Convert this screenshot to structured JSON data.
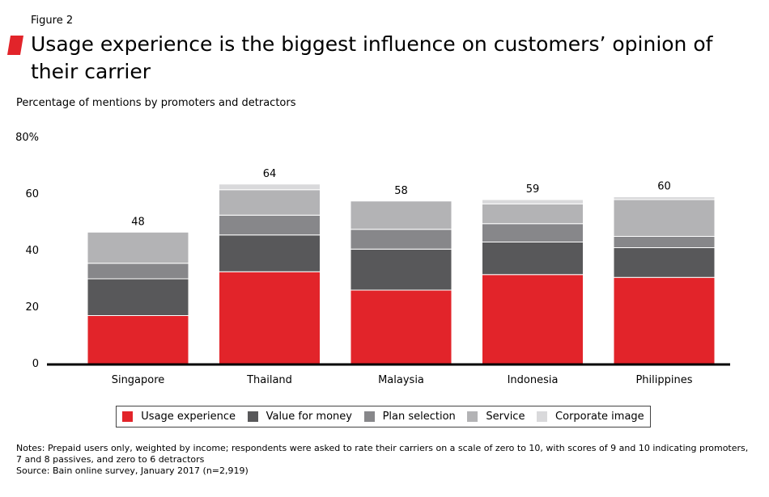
{
  "figure_label": "Figure 2",
  "title": "Usage experience is the biggest influence on customers’ opinion of their carrier",
  "subtitle": "Percentage of mentions by promoters and detractors",
  "colors": {
    "accent": "#e2242a",
    "usage": "#e2242a",
    "value": "#58585a",
    "plan": "#87878a",
    "service": "#b3b3b5",
    "corporate": "#d9d9db"
  },
  "chart_data": {
    "type": "bar",
    "stacked": true,
    "categories": [
      "Singapore",
      "Thailand",
      "Malaysia",
      "Indonesia",
      "Philippines"
    ],
    "series": [
      {
        "name": "Usage experience",
        "key": "usage",
        "values": [
          17,
          32.5,
          26,
          31.5,
          30.5
        ]
      },
      {
        "name": "Value for money",
        "key": "value",
        "values": [
          13,
          13,
          14.5,
          11.5,
          10.5
        ]
      },
      {
        "name": "Plan selection",
        "key": "plan",
        "values": [
          5.5,
          7,
          7,
          6.5,
          4
        ]
      },
      {
        "name": "Service",
        "key": "service",
        "values": [
          11,
          9,
          10,
          7,
          13
        ]
      },
      {
        "name": "Corporate image",
        "key": "corporate",
        "values": [
          0,
          2,
          0,
          1.5,
          1
        ]
      }
    ],
    "totals": [
      "48",
      "64",
      "58",
      "59",
      "60"
    ],
    "y_ticks": [
      "0",
      "20",
      "40",
      "60",
      "80%"
    ],
    "y_tick_values": [
      0,
      20,
      40,
      60,
      80
    ],
    "ylim": [
      0,
      80
    ],
    "grid": false,
    "legend_position": "bottom",
    "xlabel": "",
    "ylabel": ""
  },
  "notes": {
    "line1": "Notes: Prepaid users only, weighted by income; respondents were asked to rate their carriers on a scale of zero to 10, with scores of 9 and 10 indicating promoters,",
    "line2": "7 and 8 passives, and zero to 6 detractors",
    "source": "Source: Bain online survey, January 2017 (n=2,919)"
  }
}
